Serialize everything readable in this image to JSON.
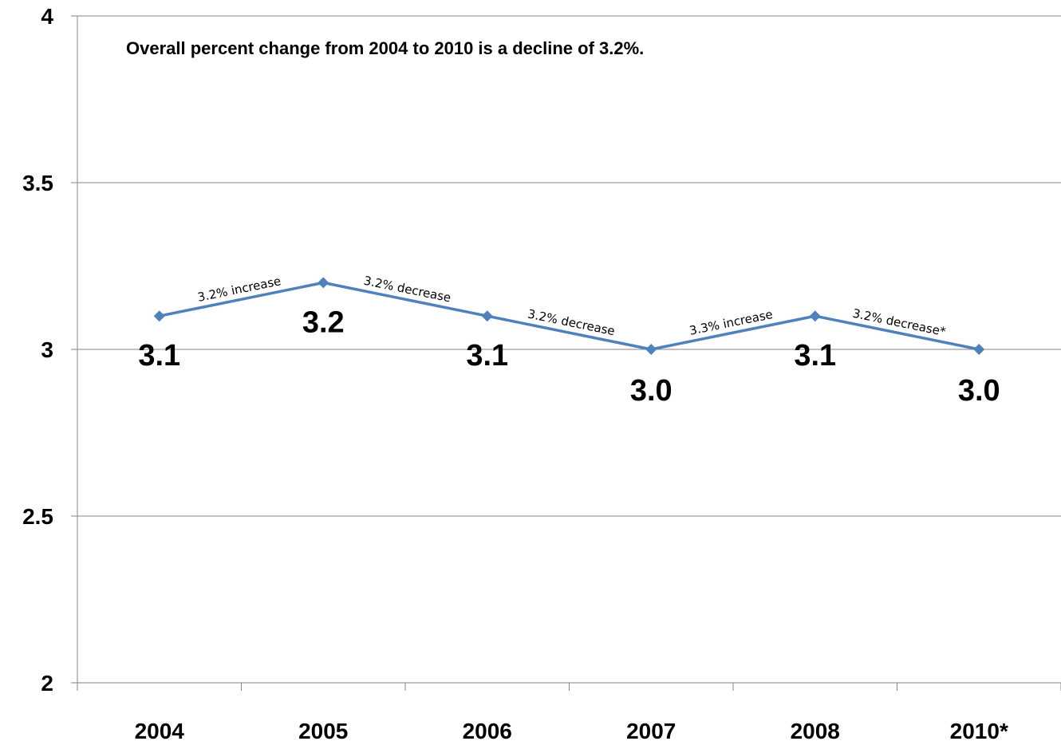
{
  "chart_data": {
    "type": "line",
    "annotation": "Overall percent change from 2004 to 2010 is a decline of 3.2%.",
    "categories": [
      "2004",
      "2005",
      "2006",
      "2007",
      "2008",
      "2010*"
    ],
    "series": [
      {
        "values": [
          3.1,
          3.2,
          3.1,
          3.0,
          3.1,
          3.0
        ],
        "color": "#4f81bd",
        "marker": "diamond"
      }
    ],
    "data_labels": [
      "3.1",
      "3.2",
      "3.1",
      "3.0",
      "3.1",
      "3.0"
    ],
    "segment_labels": [
      "3.2% increase",
      "3.2% decrease",
      "3.2% decrease",
      "3.3% increase",
      "3.2% decrease*"
    ],
    "yticks": [
      "2",
      "2.5",
      "3",
      "3.5",
      "4"
    ],
    "ylim": [
      2,
      4
    ],
    "grid": true,
    "legend": "none"
  }
}
